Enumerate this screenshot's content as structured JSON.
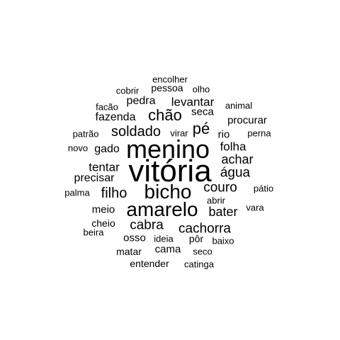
{
  "text_color": "#000000",
  "background_color": "#ffffff",
  "words": [
    {
      "text": "vitória",
      "weight": 100
    },
    {
      "text": "menino",
      "weight": 80
    },
    {
      "text": "bicho",
      "weight": 62
    },
    {
      "text": "amarelo",
      "weight": 62
    },
    {
      "text": "soldado",
      "weight": 42
    },
    {
      "text": "chão",
      "weight": 42
    },
    {
      "text": "pé",
      "weight": 42
    },
    {
      "text": "couro",
      "weight": 38
    },
    {
      "text": "água",
      "weight": 38
    },
    {
      "text": "filho",
      "weight": 40
    },
    {
      "text": "cabra",
      "weight": 38
    },
    {
      "text": "cachorra",
      "weight": 38
    },
    {
      "text": "bater",
      "weight": 36
    },
    {
      "text": "achar",
      "weight": 36
    },
    {
      "text": "folha",
      "weight": 34
    },
    {
      "text": "tentar",
      "weight": 34
    },
    {
      "text": "levantar",
      "weight": 34
    },
    {
      "text": "fazenda",
      "weight": 32
    },
    {
      "text": "gado",
      "weight": 32
    },
    {
      "text": "precisar",
      "weight": 32
    },
    {
      "text": "pedra",
      "weight": 30
    },
    {
      "text": "meio",
      "weight": 30
    },
    {
      "text": "seca",
      "weight": 30
    },
    {
      "text": "osso",
      "weight": 30
    },
    {
      "text": "procurar",
      "weight": 28
    },
    {
      "text": "cama",
      "weight": 28
    },
    {
      "text": "pessoa",
      "weight": 26
    },
    {
      "text": "rio",
      "weight": 28
    },
    {
      "text": "matar",
      "weight": 26
    },
    {
      "text": "cheio",
      "weight": 26
    },
    {
      "text": "pôr",
      "weight": 26
    },
    {
      "text": "entender",
      "weight": 26
    },
    {
      "text": "encolher",
      "weight": 24
    },
    {
      "text": "facão",
      "weight": 24
    },
    {
      "text": "patrão",
      "weight": 24
    },
    {
      "text": "ideia",
      "weight": 24
    },
    {
      "text": "abrir",
      "weight": 24
    },
    {
      "text": "olho",
      "weight": 24
    },
    {
      "text": "seco",
      "weight": 24
    },
    {
      "text": "animal",
      "weight": 22
    },
    {
      "text": "pátio",
      "weight": 22
    },
    {
      "text": "palma",
      "weight": 22
    },
    {
      "text": "vara",
      "weight": 22
    },
    {
      "text": "cobrir",
      "weight": 22
    },
    {
      "text": "perna",
      "weight": 22
    },
    {
      "text": "virar",
      "weight": 22
    },
    {
      "text": "novo",
      "weight": 22
    },
    {
      "text": "beira",
      "weight": 22
    },
    {
      "text": "baixo",
      "weight": 22
    },
    {
      "text": "catinga",
      "weight": 22
    }
  ]
}
